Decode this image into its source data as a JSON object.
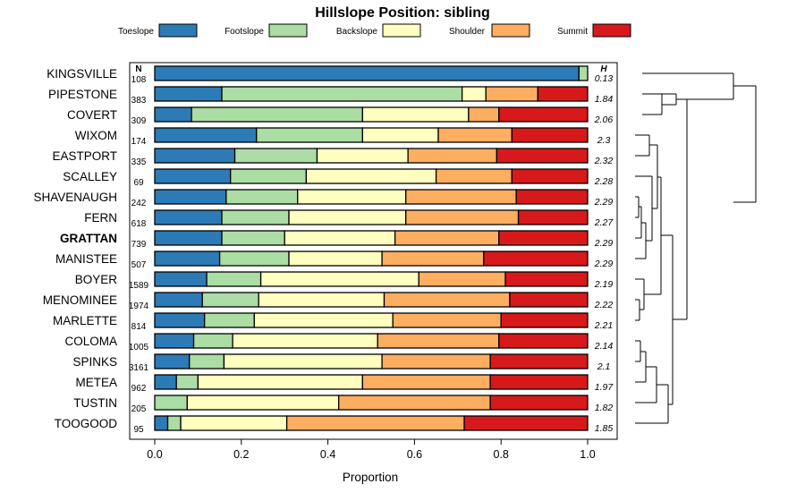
{
  "chart_data": {
    "type": "bar",
    "orientation": "horizontal",
    "stacked": true,
    "title": "Hillslope Position: sibling",
    "xlabel": "Proportion",
    "ylabel": "",
    "xlim": [
      0,
      1
    ],
    "xticks": [
      "0.0",
      "0.2",
      "0.4",
      "0.6",
      "0.8",
      "1.0"
    ],
    "n_header": "N",
    "h_header": "H",
    "highlight": "GRATTAN",
    "legend": [
      {
        "name": "Toeslope",
        "color": "#2c7bb6"
      },
      {
        "name": "Footslope",
        "color": "#abdda4"
      },
      {
        "name": "Backslope",
        "color": "#ffffbf"
      },
      {
        "name": "Shoulder",
        "color": "#fdae61"
      },
      {
        "name": "Summit",
        "color": "#d7191c"
      }
    ],
    "rows": [
      {
        "name": "KINGSVILLE",
        "n": "108",
        "h": "0.13",
        "values": [
          0.98,
          0.02,
          0.0,
          0.0,
          0.0
        ]
      },
      {
        "name": "PIPESTONE",
        "n": "383",
        "h": "1.84",
        "values": [
          0.155,
          0.555,
          0.055,
          0.12,
          0.115
        ]
      },
      {
        "name": "COVERT",
        "n": "309",
        "h": "2.06",
        "values": [
          0.085,
          0.395,
          0.245,
          0.07,
          0.205
        ]
      },
      {
        "name": "WIXOM",
        "n": "174",
        "h": "2.3",
        "values": [
          0.235,
          0.245,
          0.175,
          0.17,
          0.175
        ]
      },
      {
        "name": "EASTPORT",
        "n": "335",
        "h": "2.32",
        "values": [
          0.185,
          0.19,
          0.21,
          0.205,
          0.21
        ]
      },
      {
        "name": "SCALLEY",
        "n": "69",
        "h": "2.28",
        "values": [
          0.175,
          0.175,
          0.3,
          0.175,
          0.175
        ]
      },
      {
        "name": "SHAVENAUGH",
        "n": "242",
        "h": "2.29",
        "values": [
          0.165,
          0.165,
          0.25,
          0.255,
          0.165
        ]
      },
      {
        "name": "FERN",
        "n": "618",
        "h": "2.27",
        "values": [
          0.155,
          0.155,
          0.27,
          0.26,
          0.16
        ]
      },
      {
        "name": "GRATTAN",
        "n": "739",
        "h": "2.29",
        "values": [
          0.155,
          0.145,
          0.255,
          0.24,
          0.205
        ]
      },
      {
        "name": "MANISTEE",
        "n": "507",
        "h": "2.29",
        "values": [
          0.15,
          0.16,
          0.215,
          0.235,
          0.24
        ]
      },
      {
        "name": "BOYER",
        "n": "1589",
        "h": "2.19",
        "values": [
          0.12,
          0.125,
          0.365,
          0.2,
          0.19
        ]
      },
      {
        "name": "MENOMINEE",
        "n": "1974",
        "h": "2.22",
        "values": [
          0.11,
          0.13,
          0.29,
          0.29,
          0.18
        ]
      },
      {
        "name": "MARLETTE",
        "n": "814",
        "h": "2.21",
        "values": [
          0.115,
          0.115,
          0.32,
          0.25,
          0.2
        ]
      },
      {
        "name": "COLOMA",
        "n": "1005",
        "h": "2.14",
        "values": [
          0.09,
          0.09,
          0.335,
          0.28,
          0.205
        ]
      },
      {
        "name": "SPINKS",
        "n": "3161",
        "h": "2.1",
        "values": [
          0.08,
          0.08,
          0.365,
          0.25,
          0.225
        ]
      },
      {
        "name": "METEA",
        "n": "962",
        "h": "1.97",
        "values": [
          0.05,
          0.05,
          0.38,
          0.295,
          0.225
        ]
      },
      {
        "name": "TUSTIN",
        "n": "205",
        "h": "1.82",
        "values": [
          0.0,
          0.075,
          0.35,
          0.35,
          0.225
        ]
      },
      {
        "name": "TOOGOOD",
        "n": "95",
        "h": "1.85",
        "values": [
          0.03,
          0.03,
          0.245,
          0.41,
          0.285
        ]
      }
    ]
  }
}
